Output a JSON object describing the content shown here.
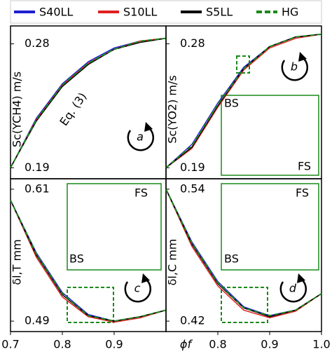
{
  "chart_data": [
    {
      "type": "line",
      "panel": "a",
      "ylabel": "Sc(YCH4) m/s",
      "xlim": [
        0.7,
        1.0
      ],
      "ylim": [
        0.182,
        0.293
      ],
      "yticks": [
        0.19,
        0.28
      ],
      "annotations": [
        "Eq. (3)"
      ],
      "x": [
        0.7,
        0.75,
        0.8,
        0.85,
        0.9,
        0.95,
        1.0
      ],
      "series": [
        {
          "name": "S40LL",
          "color": "#1f1fd0",
          "values": [
            0.19,
            0.226,
            0.251,
            0.267,
            0.277,
            0.282,
            0.284
          ]
        },
        {
          "name": "S10LL",
          "color": "#e02020",
          "values": [
            0.19,
            0.225,
            0.25,
            0.266,
            0.276,
            0.282,
            0.284
          ]
        },
        {
          "name": "S5LL",
          "color": "#000000",
          "values": [
            0.19,
            0.224,
            0.249,
            0.265,
            0.276,
            0.281,
            0.284
          ]
        },
        {
          "name": "HG",
          "color": "#1a8a1a",
          "dash": true,
          "values": [
            0.19,
            0.225,
            0.25,
            0.266,
            0.276,
            0.282,
            0.284
          ]
        }
      ]
    },
    {
      "type": "line",
      "panel": "b",
      "ylabel": "Sc(YO2) m/s",
      "xlim": [
        0.7,
        1.0
      ],
      "ylim": [
        0.182,
        0.293
      ],
      "yticks": [
        0.19,
        0.28
      ],
      "annotations": [
        "BS",
        "FS"
      ],
      "x": [
        0.7,
        0.75,
        0.8,
        0.85,
        0.9,
        0.95,
        1.0
      ],
      "series": [
        {
          "name": "S40LL",
          "color": "#1f1fd0",
          "values": [
            0.19,
            0.207,
            0.237,
            0.263,
            0.278,
            0.285,
            0.287
          ]
        },
        {
          "name": "S10LL",
          "color": "#e02020",
          "values": [
            0.19,
            0.204,
            0.234,
            0.261,
            0.277,
            0.284,
            0.287
          ]
        },
        {
          "name": "S5LL",
          "color": "#000000",
          "values": [
            0.19,
            0.205,
            0.235,
            0.262,
            0.278,
            0.285,
            0.287
          ]
        },
        {
          "name": "HG",
          "color": "#1a8a1a",
          "dash": true,
          "values": [
            0.19,
            0.206,
            0.236,
            0.262,
            0.278,
            0.285,
            0.287
          ]
        }
      ]
    },
    {
      "type": "line",
      "panel": "c",
      "ylabel": "δl,T mm",
      "xlim": [
        0.7,
        1.0
      ],
      "ylim": [
        0.4805,
        0.6195
      ],
      "yticks": [
        0.49,
        0.61
      ],
      "xticks": [
        0.7,
        0.8,
        0.9
      ],
      "annotations": [
        "FS",
        "BS"
      ],
      "x": [
        0.7,
        0.75,
        0.8,
        0.85,
        0.9,
        0.95,
        1.0
      ],
      "series": [
        {
          "name": "S40LL",
          "color": "#1f1fd0",
          "values": [
            0.6,
            0.552,
            0.516,
            0.496,
            0.49,
            0.494,
            0.5
          ]
        },
        {
          "name": "S10LL",
          "color": "#e02020",
          "values": [
            0.6,
            0.548,
            0.512,
            0.494,
            0.489,
            0.493,
            0.5
          ]
        },
        {
          "name": "S5LL",
          "color": "#000000",
          "values": [
            0.6,
            0.55,
            0.514,
            0.495,
            0.49,
            0.494,
            0.5
          ]
        },
        {
          "name": "HG",
          "color": "#1a8a1a",
          "dash": true,
          "values": [
            0.6,
            0.551,
            0.515,
            0.495,
            0.49,
            0.494,
            0.5
          ]
        }
      ]
    },
    {
      "type": "line",
      "panel": "d",
      "ylabel": "δl,C mm",
      "xlim": [
        0.7,
        1.0
      ],
      "ylim": [
        0.4105,
        0.5495
      ],
      "yticks": [
        0.42,
        0.54
      ],
      "xticks": [
        0.8,
        0.9,
        {
          "value": 1.0,
          "label": "1.0"
        }
      ],
      "xlabel": "ϕf",
      "annotations": [
        "FS",
        "BS"
      ],
      "x": [
        0.7,
        0.75,
        0.8,
        0.85,
        0.9,
        0.95,
        1.0
      ],
      "series": [
        {
          "name": "S40LL",
          "color": "#1f1fd0",
          "values": [
            0.54,
            0.492,
            0.456,
            0.433,
            0.425,
            0.43,
            0.445
          ]
        },
        {
          "name": "S10LL",
          "color": "#e02020",
          "values": [
            0.54,
            0.488,
            0.452,
            0.43,
            0.423,
            0.429,
            0.445
          ]
        },
        {
          "name": "S5LL",
          "color": "#000000",
          "values": [
            0.54,
            0.49,
            0.454,
            0.432,
            0.424,
            0.43,
            0.445
          ]
        },
        {
          "name": "HG",
          "color": "#1a8a1a",
          "dash": true,
          "values": [
            0.54,
            0.491,
            0.455,
            0.432,
            0.425,
            0.43,
            0.445
          ]
        }
      ]
    }
  ]
}
